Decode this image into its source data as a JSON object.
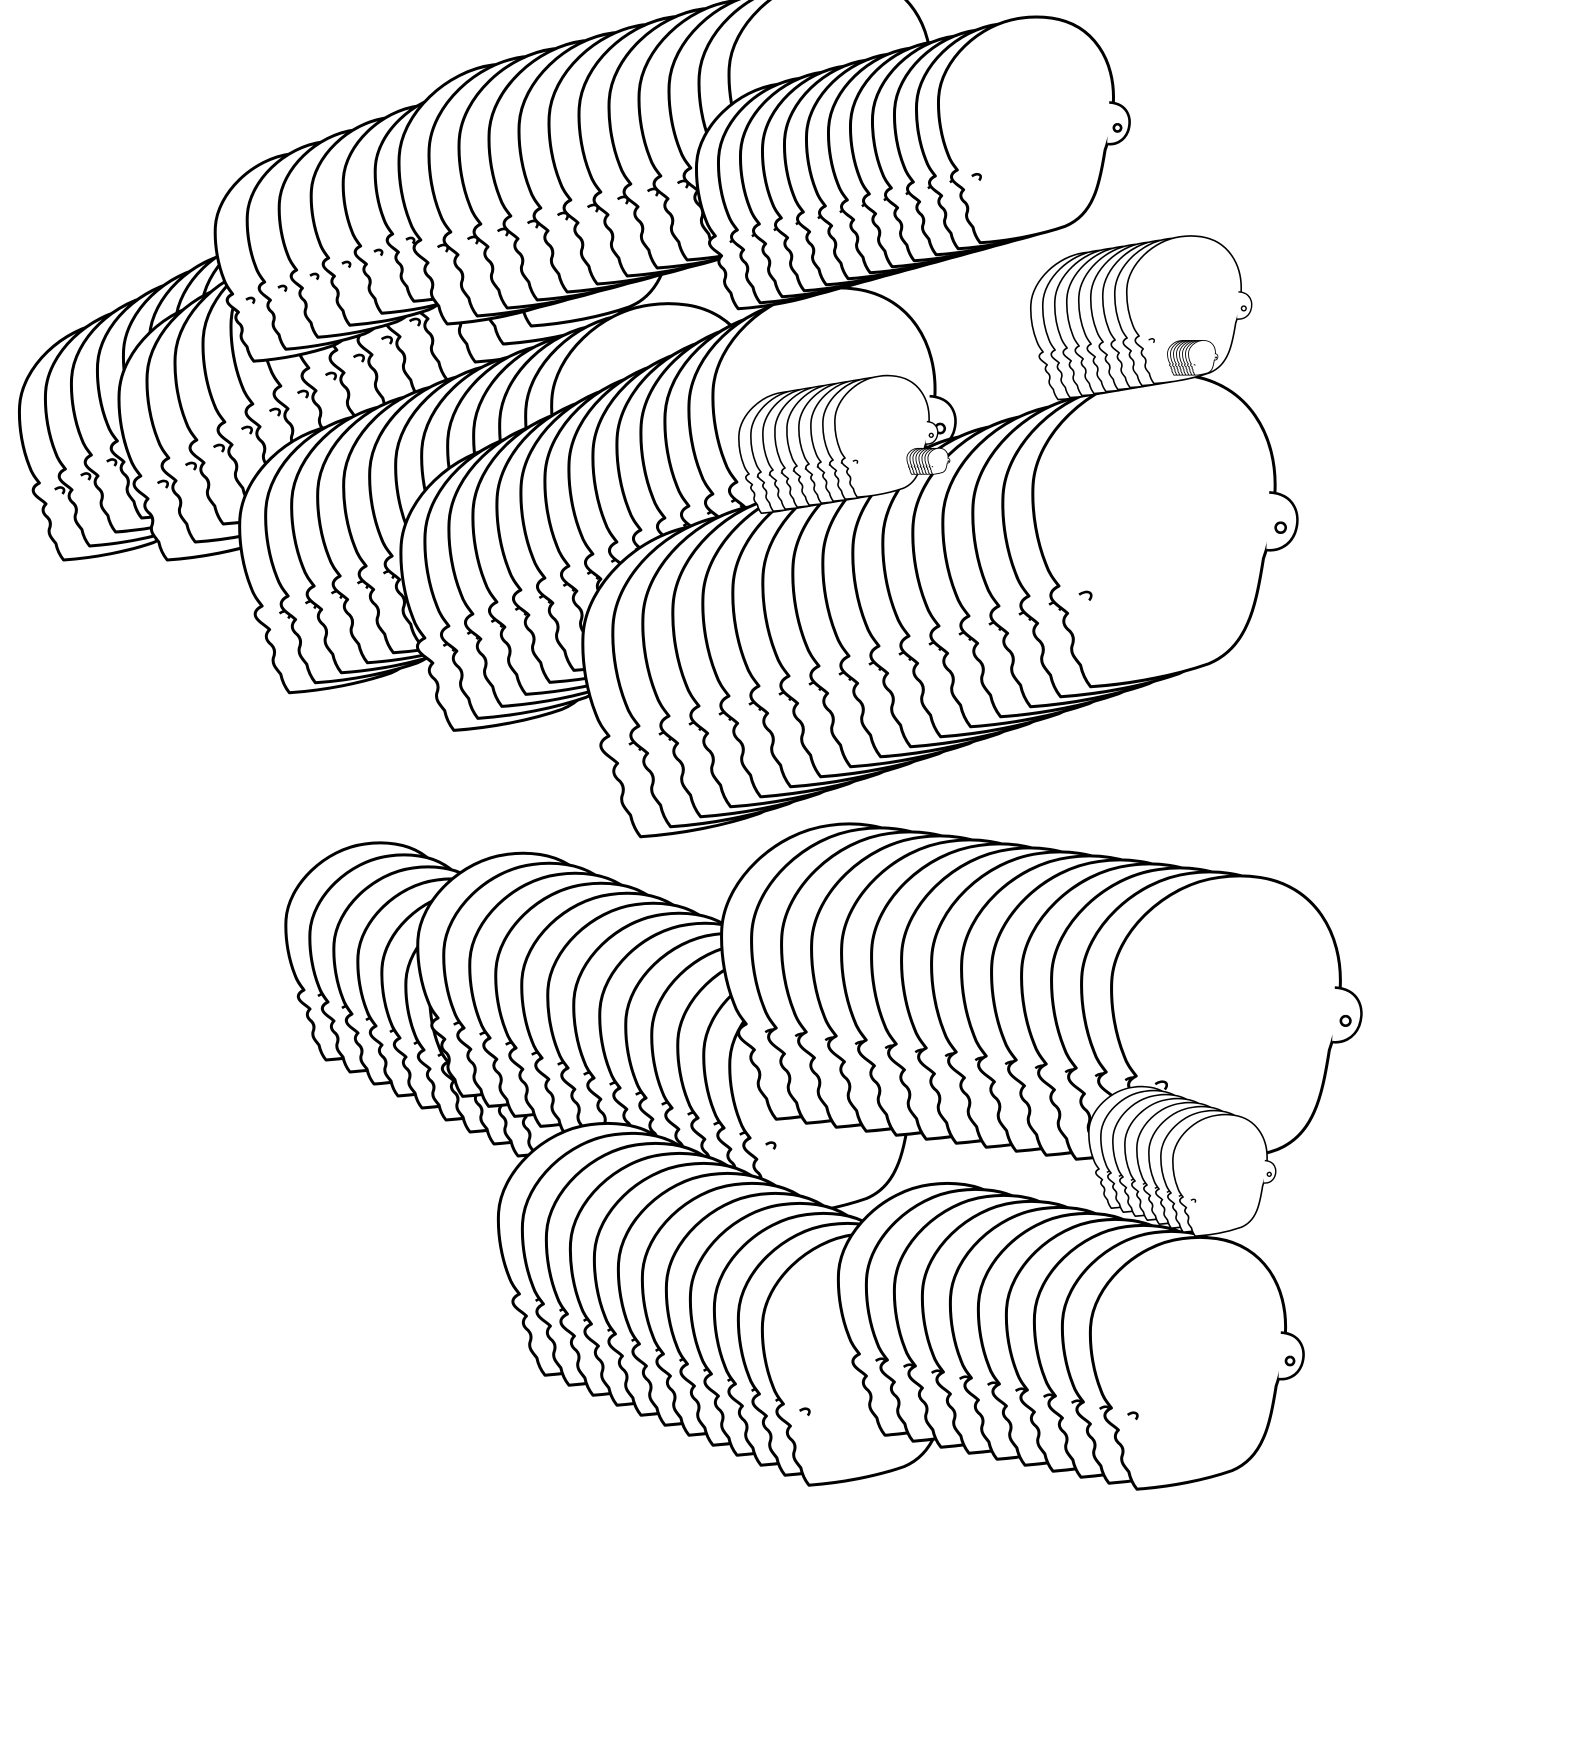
{
  "artwork": {
    "colors": {
      "background": "#ffffff",
      "line": "#000000",
      "fill": "#ffffff"
    },
    "stacks": [
      {
        "facing": "left",
        "count": 12,
        "scale": 0.55
      },
      {
        "facing": "left",
        "count": 14,
        "scale": 0.6
      },
      {
        "facing": "left",
        "count": 10,
        "scale": 0.48
      },
      {
        "facing": "left",
        "count": 13,
        "scale": 0.62
      },
      {
        "facing": "left",
        "count": 12,
        "scale": 0.6
      },
      {
        "facing": "left",
        "count": 14,
        "scale": 0.66
      },
      {
        "facing": "left",
        "count": 12,
        "scale": 0.52
      },
      {
        "facing": "left",
        "count": 10,
        "scale": 0.5
      },
      {
        "facing": "left",
        "count": 16,
        "scale": 0.72
      },
      {
        "facing": "left",
        "count": 13,
        "scale": 0.56
      },
      {
        "facing": "left",
        "count": 14,
        "scale": 0.68
      },
      {
        "facing": "left",
        "count": 12,
        "scale": 0.58
      },
      {
        "facing": "left",
        "count": 10,
        "scale": 0.58
      },
      {
        "facing": "left",
        "count": 9,
        "scale": 0.28
      },
      {
        "facing": "left",
        "count": 9,
        "scale": 0.34
      },
      {
        "facing": "left",
        "count": 8,
        "scale": 0.06
      },
      {
        "facing": "left",
        "count": 8,
        "scale": 0.08
      },
      {
        "facing": "left",
        "count": 8,
        "scale": 0.28
      }
    ]
  }
}
